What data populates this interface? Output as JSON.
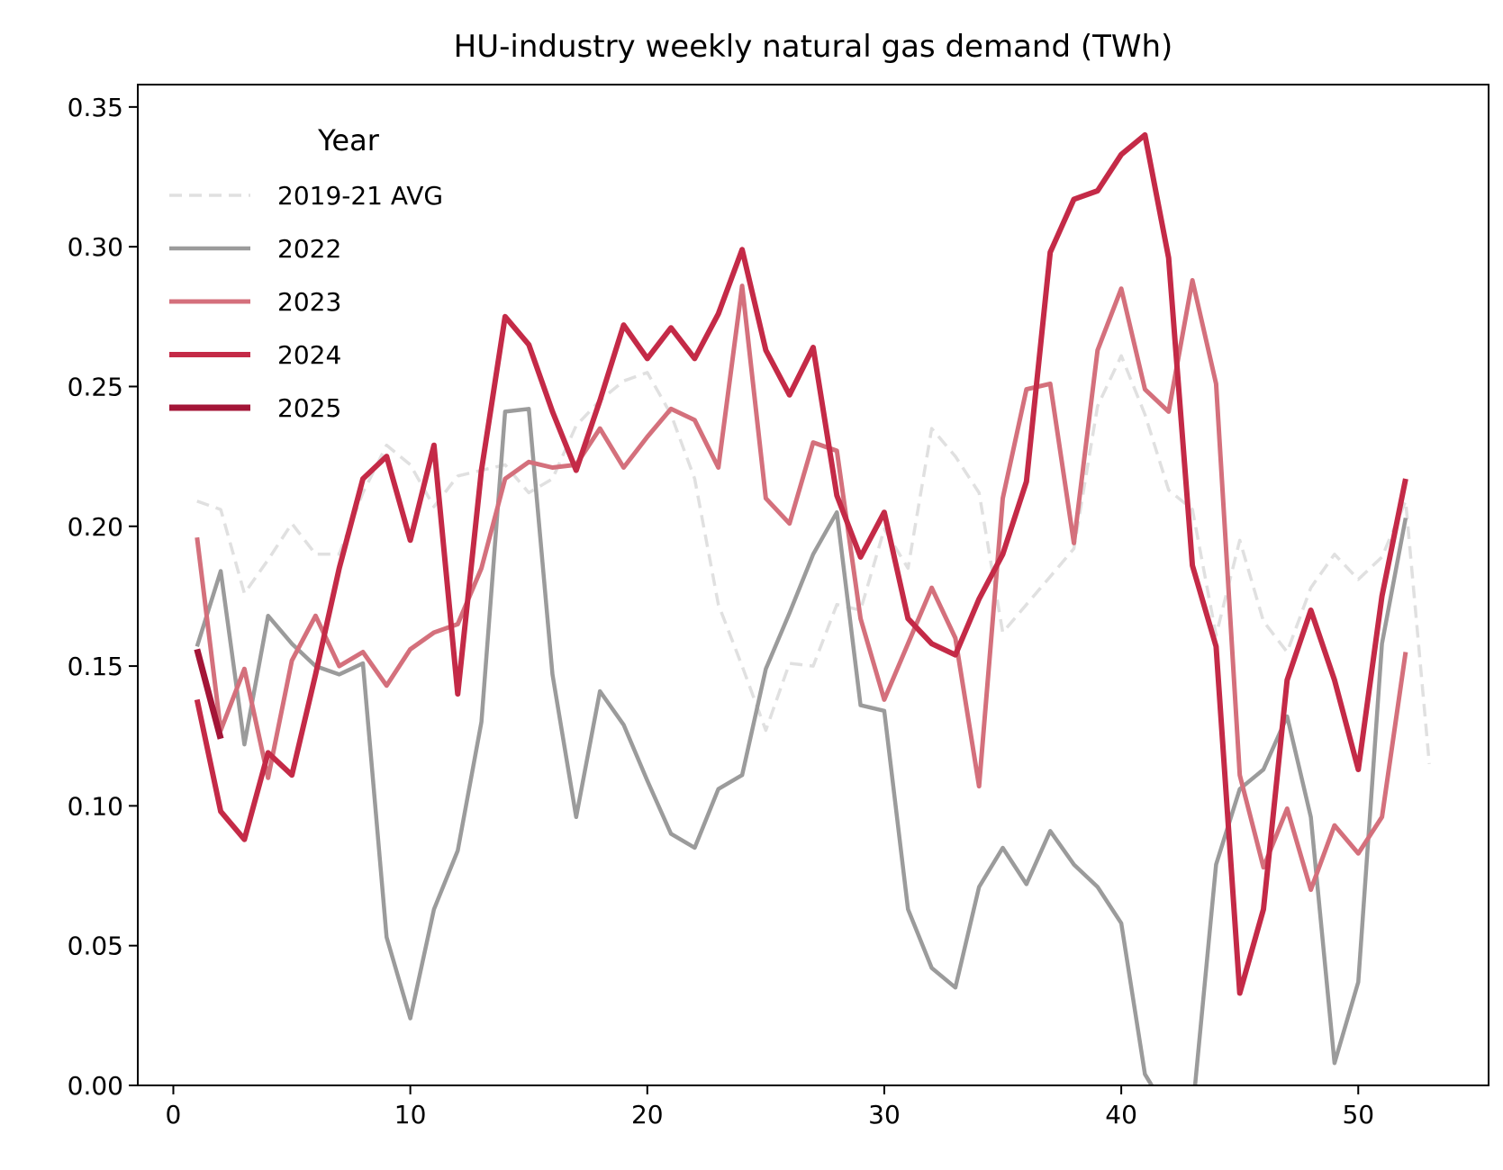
{
  "chart_data": {
    "type": "line",
    "title": "HU-industry weekly natural gas demand (TWh)",
    "xlabel": "",
    "ylabel": "",
    "xlim": [
      -1.5,
      55.5
    ],
    "ylim": [
      0,
      0.358
    ],
    "xticks": [
      0,
      10,
      20,
      30,
      40,
      50
    ],
    "yticks": [
      0.0,
      0.05,
      0.1,
      0.15,
      0.2,
      0.25,
      0.3,
      0.35
    ],
    "ytick_labels": [
      "0.00",
      "0.05",
      "0.10",
      "0.15",
      "0.20",
      "0.25",
      "0.30",
      "0.35"
    ],
    "xtick_labels": [
      "0",
      "10",
      "20",
      "30",
      "40",
      "50"
    ],
    "grid": false,
    "legend": {
      "title": "Year",
      "placement": "top-left"
    },
    "series": [
      {
        "name": "2019-21 AVG",
        "color": "#e0e0e0",
        "style": "dashed",
        "width": 3.5,
        "x": [
          1,
          2,
          3,
          4,
          5,
          6,
          7,
          8,
          9,
          10,
          11,
          12,
          13,
          14,
          15,
          16,
          17,
          18,
          19,
          20,
          21,
          22,
          23,
          24,
          25,
          26,
          27,
          28,
          29,
          30,
          31,
          32,
          33,
          34,
          35,
          36,
          37,
          38,
          39,
          40,
          41,
          42,
          43,
          44,
          45,
          46,
          47,
          48,
          49,
          50,
          51,
          52,
          53
        ],
        "y": [
          0.209,
          0.206,
          0.176,
          0.188,
          0.201,
          0.19,
          0.19,
          0.212,
          0.229,
          0.222,
          0.207,
          0.218,
          0.22,
          0.222,
          0.212,
          0.217,
          0.236,
          0.245,
          0.252,
          0.255,
          0.24,
          0.217,
          0.172,
          0.15,
          0.127,
          0.151,
          0.15,
          0.172,
          0.17,
          0.199,
          0.185,
          0.235,
          0.225,
          0.212,
          0.162,
          0.172,
          0.182,
          0.192,
          0.243,
          0.261,
          0.24,
          0.213,
          0.206,
          0.161,
          0.195,
          0.166,
          0.155,
          0.178,
          0.19,
          0.181,
          0.189,
          0.209,
          0.115
        ]
      },
      {
        "name": "2022",
        "color": "#9b9b9b",
        "style": "solid",
        "width": 4.5,
        "x": [
          1,
          2,
          3,
          4,
          5,
          6,
          7,
          8,
          9,
          10,
          11,
          12,
          13,
          14,
          15,
          16,
          17,
          18,
          19,
          20,
          21,
          22,
          23,
          24,
          25,
          26,
          27,
          28,
          29,
          30,
          31,
          32,
          33,
          34,
          35,
          36,
          37,
          38,
          39,
          40,
          41,
          42,
          43,
          44,
          45,
          46,
          47,
          48,
          49,
          50,
          51,
          52
        ],
        "y": [
          0.157,
          0.184,
          0.122,
          0.168,
          0.158,
          0.15,
          0.147,
          0.151,
          0.053,
          0.024,
          0.063,
          0.084,
          0.13,
          0.241,
          0.242,
          0.147,
          0.096,
          0.141,
          0.129,
          0.109,
          0.09,
          0.085,
          0.106,
          0.111,
          0.149,
          0.169,
          0.19,
          0.205,
          0.136,
          0.134,
          0.063,
          0.042,
          0.035,
          0.071,
          0.085,
          0.072,
          0.091,
          0.079,
          0.071,
          0.058,
          0.004,
          -0.01,
          -0.01,
          0.079,
          0.106,
          0.113,
          0.132,
          0.096,
          0.008,
          0.037,
          0.158,
          0.203
        ]
      },
      {
        "name": "2023",
        "color": "#d4707c",
        "style": "solid",
        "width": 5,
        "x": [
          1,
          2,
          3,
          4,
          5,
          6,
          7,
          8,
          9,
          10,
          11,
          12,
          13,
          14,
          15,
          16,
          17,
          18,
          19,
          20,
          21,
          22,
          23,
          24,
          25,
          26,
          27,
          28,
          29,
          30,
          31,
          32,
          33,
          34,
          35,
          36,
          37,
          38,
          39,
          40,
          41,
          42,
          43,
          44,
          45,
          46,
          47,
          48,
          49,
          50,
          51,
          52
        ],
        "y": [
          0.196,
          0.127,
          0.149,
          0.11,
          0.152,
          0.168,
          0.15,
          0.155,
          0.143,
          0.156,
          0.162,
          0.165,
          0.185,
          0.217,
          0.223,
          0.221,
          0.222,
          0.235,
          0.221,
          0.232,
          0.242,
          0.238,
          0.221,
          0.286,
          0.21,
          0.201,
          0.23,
          0.227,
          0.167,
          0.138,
          0.158,
          0.178,
          0.16,
          0.107,
          0.21,
          0.249,
          0.251,
          0.194,
          0.263,
          0.285,
          0.249,
          0.241,
          0.288,
          0.251,
          0.111,
          0.078,
          0.099,
          0.07,
          0.093,
          0.083,
          0.096,
          0.155
        ]
      },
      {
        "name": "2024",
        "color": "#c42a47",
        "style": "solid",
        "width": 6,
        "x": [
          1,
          2,
          3,
          4,
          5,
          6,
          7,
          8,
          9,
          10,
          11,
          12,
          13,
          14,
          15,
          16,
          17,
          18,
          19,
          20,
          21,
          22,
          23,
          24,
          25,
          26,
          27,
          28,
          29,
          30,
          31,
          32,
          33,
          34,
          35,
          36,
          37,
          38,
          39,
          40,
          41,
          42,
          43,
          44,
          45,
          46,
          47,
          48,
          49,
          50,
          51,
          52
        ],
        "y": [
          0.138,
          0.098,
          0.088,
          0.119,
          0.111,
          0.147,
          0.185,
          0.217,
          0.225,
          0.195,
          0.229,
          0.14,
          0.22,
          0.275,
          0.265,
          0.241,
          0.22,
          0.245,
          0.272,
          0.26,
          0.271,
          0.26,
          0.276,
          0.299,
          0.263,
          0.247,
          0.264,
          0.211,
          0.189,
          0.205,
          0.167,
          0.158,
          0.154,
          0.174,
          0.19,
          0.216,
          0.298,
          0.317,
          0.32,
          0.333,
          0.34,
          0.296,
          0.186,
          0.157,
          0.033,
          0.063,
          0.145,
          0.17,
          0.145,
          0.113,
          0.175,
          0.217
        ]
      },
      {
        "name": "2025",
        "color": "#a31537",
        "style": "solid",
        "width": 7,
        "x": [
          1,
          2
        ],
        "y": [
          0.156,
          0.124
        ]
      }
    ]
  }
}
